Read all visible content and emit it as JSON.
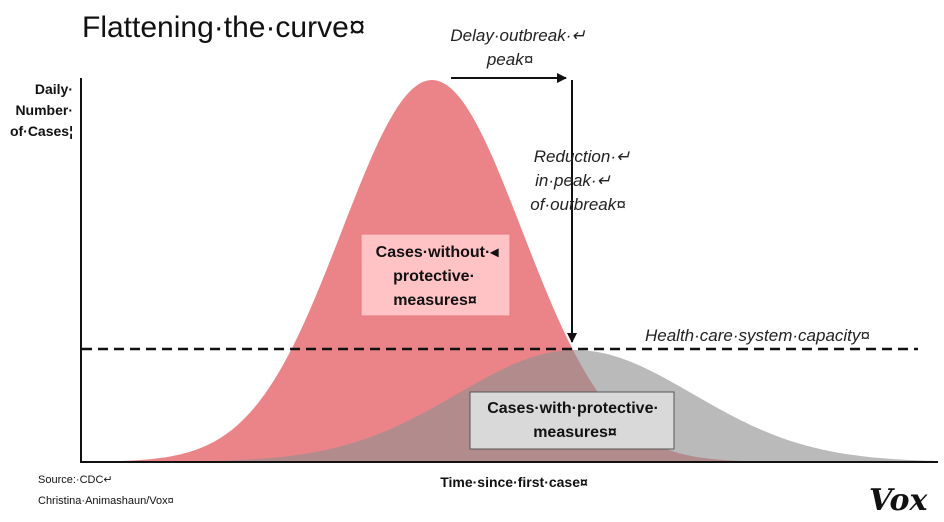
{
  "title": "Flattening·the·curve¤",
  "annotations": {
    "delay_line1": "Delay·outbreak·↵",
    "delay_line2": "peak¤",
    "reduction_line1": "Reduction·↵",
    "reduction_line2": "in·peak·↵",
    "reduction_line3": "of·outbreak¤",
    "capacity": "Health·care·system·capacity¤"
  },
  "axes": {
    "y_line1": "Daily·",
    "y_line2": "Number·",
    "y_line3": "of·Cases¦",
    "x": "Time·since·first·case¤"
  },
  "curves": {
    "without": {
      "line1": "Cases·without·◂",
      "line2": "protective·",
      "line3": "measures¤",
      "color": "#e9777b"
    },
    "with": {
      "line1": "Cases·with·protective·",
      "line2": "measures¤",
      "color": "#8f8f8f"
    }
  },
  "source": {
    "line1": "Source:·CDC↵",
    "line2": "Christina·Animashaun/Vox¤"
  },
  "brand": "Vox"
}
